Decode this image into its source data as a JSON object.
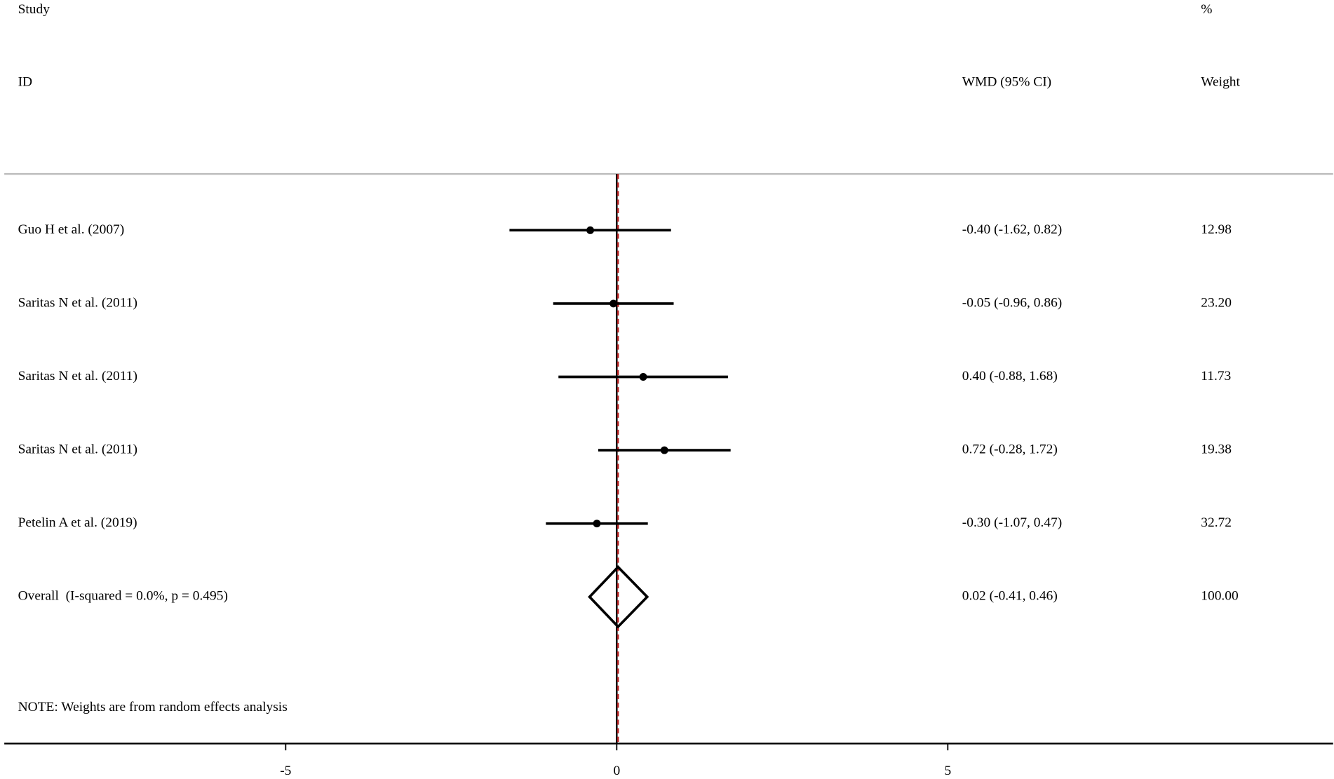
{
  "chart_data": {
    "type": "forest",
    "headers": {
      "study": "Study",
      "id": "ID",
      "ci": "WMD (95% CI)",
      "pct": "%",
      "weight": "Weight"
    },
    "studies": [
      "Guo H et al. (2007)",
      "Saritas N et al. (2011)",
      "Saritas N et al. (2011)",
      "Saritas N et al. (2011)",
      "Petelin A et al. (2019)"
    ],
    "values": [
      -0.4,
      -0.05,
      0.4,
      0.72,
      -0.3
    ],
    "lower": [
      -1.62,
      -0.96,
      -0.88,
      -0.28,
      -1.07
    ],
    "upper": [
      0.82,
      0.86,
      1.68,
      1.72,
      0.47
    ],
    "value_labels": [
      "-0.40 (-1.62, 0.82)",
      "-0.05 (-0.96, 0.86)",
      "0.40 (-0.88, 1.68)",
      "0.72 (-0.28, 1.72)",
      "-0.30 (-1.07, 0.47)"
    ],
    "weights": [
      "12.98",
      "23.20",
      "11.73",
      "19.38",
      "32.72"
    ],
    "overall": {
      "label": "Overall  (I-squared = 0.0%, p = 0.495)",
      "value": 0.02,
      "lower": -0.41,
      "upper": 0.46,
      "value_label": "0.02 (-0.41, 0.46)",
      "weight": "100.00"
    },
    "note": "NOTE: Weights are from random effects analysis",
    "xlim": [
      -9.25,
      10.82
    ],
    "xticks": [
      -5,
      0,
      5
    ]
  }
}
